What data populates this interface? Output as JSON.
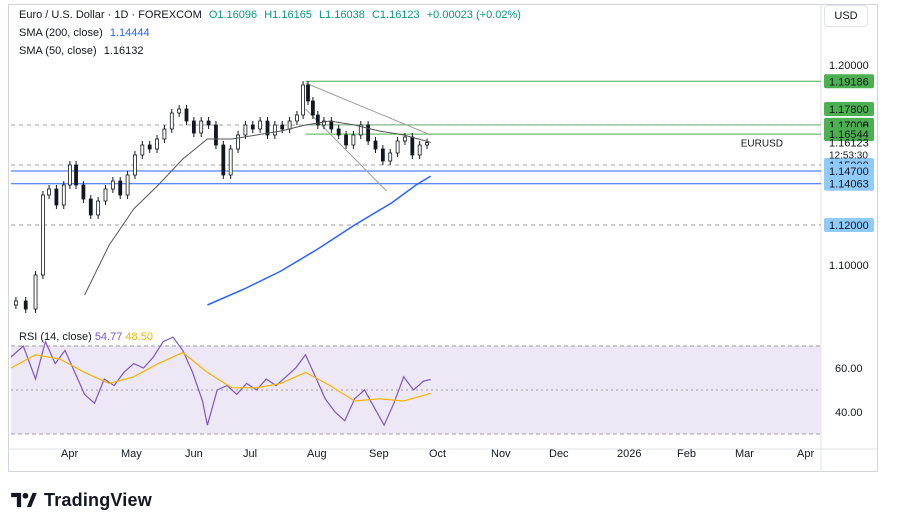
{
  "header": {
    "instrument": "Euro / U.S. Dollar · 1D · FOREXCOM",
    "open": "O1.16096",
    "high": "H1.16165",
    "low": "L1.16038",
    "close": "C1.16123",
    "change": "+0.00023 (+0.02%)"
  },
  "indicators": {
    "sma200_label": "SMA (200, close)",
    "sma200_value": "1.14444",
    "sma50_label": "SMA (50, close)",
    "sma50_value": "1.16132",
    "rsi_label": "RSI (14, close)",
    "rsi_value": "54.77",
    "rsi_ma_value": "48.50"
  },
  "currency_button": "USD",
  "symbol_tag": "EURUSD",
  "last_price": "1.16123",
  "countdown": "12:53:30",
  "brand": "TradingView",
  "colors": {
    "up": "#089981",
    "price_candle": "#131722",
    "sma200": "#2962ff",
    "sma50": "#555555",
    "resistance": "#4caf50",
    "support": "#2962ff",
    "rsi": "#7e57c2",
    "rsi_ma": "#f7b500",
    "rsi_band": "#ede7f6",
    "channel": "#9e9e9e"
  },
  "chart_data": {
    "type": "candlestick",
    "symbol": "EURUSD",
    "timeframe": "1D",
    "x_ticks": [
      "Apr",
      "May",
      "Jun",
      "Jul",
      "Aug",
      "Sep",
      "Oct",
      "Nov",
      "Dec",
      "2026",
      "Feb",
      "Mar",
      "Apr"
    ],
    "price_axis": {
      "ticks": [
        "1.20000",
        "1.10000"
      ],
      "ylim": [
        1.07,
        1.21
      ]
    },
    "price_labels": [
      {
        "text": "1.19186",
        "value": 1.19186,
        "style": "green"
      },
      {
        "text": "1.17800",
        "value": 1.178,
        "style": "green"
      },
      {
        "text": "1.17008",
        "value": 1.17008,
        "style": "green"
      },
      {
        "text": "1.17000",
        "value": 1.17,
        "style": "plain"
      },
      {
        "text": "1.16544",
        "value": 1.16544,
        "style": "green"
      },
      {
        "text": "1.16123",
        "value": 1.16123,
        "style": "plain"
      },
      {
        "text": "1.15000",
        "value": 1.15,
        "style": "blue"
      },
      {
        "text": "1.14700",
        "value": 1.147,
        "style": "blue"
      },
      {
        "text": "1.14063",
        "value": 1.14063,
        "style": "blue"
      },
      {
        "text": "1.12000",
        "value": 1.12,
        "style": "blue"
      }
    ],
    "horizontal_levels": [
      {
        "value": 1.19186,
        "kind": "resistance",
        "start": "Sep"
      },
      {
        "value": 1.17008,
        "kind": "resistance",
        "start": "Sep"
      },
      {
        "value": 1.16544,
        "kind": "resistance",
        "start": "Sep"
      },
      {
        "value": 1.15,
        "kind": "dashed"
      },
      {
        "value": 1.147,
        "kind": "support"
      },
      {
        "value": 1.14063,
        "kind": "support"
      },
      {
        "value": 1.12,
        "kind": "dashed"
      },
      {
        "value": 1.17,
        "kind": "dashed"
      }
    ],
    "price_path": [
      {
        "t": 0,
        "v": 1.08
      },
      {
        "t": 4,
        "v": 1.082
      },
      {
        "t": 8,
        "v": 1.078
      },
      {
        "t": 12,
        "v": 1.095
      },
      {
        "t": 14,
        "v": 1.135
      },
      {
        "t": 17,
        "v": 1.138
      },
      {
        "t": 20,
        "v": 1.13
      },
      {
        "t": 23,
        "v": 1.14
      },
      {
        "t": 25,
        "v": 1.15
      },
      {
        "t": 28,
        "v": 1.14
      },
      {
        "t": 31,
        "v": 1.133
      },
      {
        "t": 34,
        "v": 1.125
      },
      {
        "t": 37,
        "v": 1.132
      },
      {
        "t": 40,
        "v": 1.138
      },
      {
        "t": 43,
        "v": 1.142
      },
      {
        "t": 46,
        "v": 1.135
      },
      {
        "t": 49,
        "v": 1.145
      },
      {
        "t": 52,
        "v": 1.155
      },
      {
        "t": 55,
        "v": 1.16
      },
      {
        "t": 58,
        "v": 1.158
      },
      {
        "t": 61,
        "v": 1.163
      },
      {
        "t": 64,
        "v": 1.168
      },
      {
        "t": 67,
        "v": 1.176
      },
      {
        "t": 70,
        "v": 1.178
      },
      {
        "t": 73,
        "v": 1.172
      },
      {
        "t": 76,
        "v": 1.166
      },
      {
        "t": 79,
        "v": 1.172
      },
      {
        "t": 82,
        "v": 1.17
      },
      {
        "t": 85,
        "v": 1.16
      },
      {
        "t": 88,
        "v": 1.145
      },
      {
        "t": 91,
        "v": 1.158
      },
      {
        "t": 94,
        "v": 1.165
      },
      {
        "t": 97,
        "v": 1.17
      },
      {
        "t": 100,
        "v": 1.168
      },
      {
        "t": 103,
        "v": 1.172
      },
      {
        "t": 106,
        "v": 1.165
      },
      {
        "t": 109,
        "v": 1.17
      },
      {
        "t": 112,
        "v": 1.168
      },
      {
        "t": 115,
        "v": 1.172
      },
      {
        "t": 118,
        "v": 1.175
      },
      {
        "t": 120,
        "v": 1.19
      },
      {
        "t": 122,
        "v": 1.182
      },
      {
        "t": 124,
        "v": 1.175
      },
      {
        "t": 126,
        "v": 1.17
      },
      {
        "t": 129,
        "v": 1.172
      },
      {
        "t": 132,
        "v": 1.168
      },
      {
        "t": 135,
        "v": 1.165
      },
      {
        "t": 138,
        "v": 1.16
      },
      {
        "t": 141,
        "v": 1.165
      },
      {
        "t": 144,
        "v": 1.17
      },
      {
        "t": 147,
        "v": 1.162
      },
      {
        "t": 150,
        "v": 1.158
      },
      {
        "t": 153,
        "v": 1.152
      },
      {
        "t": 156,
        "v": 1.156
      },
      {
        "t": 159,
        "v": 1.162
      },
      {
        "t": 162,
        "v": 1.164
      },
      {
        "t": 165,
        "v": 1.155
      },
      {
        "t": 168,
        "v": 1.16
      },
      {
        "t": 171,
        "v": 1.16123
      }
    ],
    "sma50": [
      {
        "t": 30,
        "v": 1.085
      },
      {
        "t": 40,
        "v": 1.11
      },
      {
        "t": 50,
        "v": 1.128
      },
      {
        "t": 60,
        "v": 1.14
      },
      {
        "t": 70,
        "v": 1.153
      },
      {
        "t": 80,
        "v": 1.163
      },
      {
        "t": 90,
        "v": 1.163
      },
      {
        "t": 100,
        "v": 1.165
      },
      {
        "t": 110,
        "v": 1.167
      },
      {
        "t": 120,
        "v": 1.17
      },
      {
        "t": 130,
        "v": 1.172
      },
      {
        "t": 140,
        "v": 1.17
      },
      {
        "t": 150,
        "v": 1.167
      },
      {
        "t": 160,
        "v": 1.165
      },
      {
        "t": 171,
        "v": 1.16132
      }
    ],
    "sma200": [
      {
        "t": 80,
        "v": 1.08
      },
      {
        "t": 95,
        "v": 1.088
      },
      {
        "t": 110,
        "v": 1.097
      },
      {
        "t": 125,
        "v": 1.108
      },
      {
        "t": 140,
        "v": 1.12
      },
      {
        "t": 155,
        "v": 1.131
      },
      {
        "t": 165,
        "v": 1.14
      },
      {
        "t": 171,
        "v": 1.14444
      }
    ],
    "channel": {
      "upper": [
        {
          "t": 120,
          "v": 1.191
        },
        {
          "t": 171,
          "v": 1.165
        }
      ],
      "lower": [
        {
          "t": 120,
          "v": 1.178
        },
        {
          "t": 153,
          "v": 1.137
        }
      ]
    },
    "rsi": {
      "ylim": [
        25,
        75
      ],
      "ticks": [
        60.0,
        40.0
      ],
      "band": [
        30,
        70
      ],
      "rsi_series": [
        {
          "t": 0,
          "v": 65
        },
        {
          "t": 5,
          "v": 70
        },
        {
          "t": 10,
          "v": 55
        },
        {
          "t": 14,
          "v": 72
        },
        {
          "t": 18,
          "v": 62
        },
        {
          "t": 22,
          "v": 68
        },
        {
          "t": 26,
          "v": 58
        },
        {
          "t": 30,
          "v": 48
        },
        {
          "t": 34,
          "v": 44
        },
        {
          "t": 38,
          "v": 55
        },
        {
          "t": 42,
          "v": 52
        },
        {
          "t": 46,
          "v": 58
        },
        {
          "t": 50,
          "v": 62
        },
        {
          "t": 54,
          "v": 60
        },
        {
          "t": 58,
          "v": 65
        },
        {
          "t": 62,
          "v": 72
        },
        {
          "t": 66,
          "v": 74
        },
        {
          "t": 70,
          "v": 68
        },
        {
          "t": 74,
          "v": 58
        },
        {
          "t": 78,
          "v": 45
        },
        {
          "t": 80,
          "v": 34
        },
        {
          "t": 84,
          "v": 50
        },
        {
          "t": 88,
          "v": 52
        },
        {
          "t": 92,
          "v": 48
        },
        {
          "t": 96,
          "v": 53
        },
        {
          "t": 100,
          "v": 50
        },
        {
          "t": 104,
          "v": 55
        },
        {
          "t": 108,
          "v": 52
        },
        {
          "t": 112,
          "v": 56
        },
        {
          "t": 116,
          "v": 60
        },
        {
          "t": 120,
          "v": 66
        },
        {
          "t": 124,
          "v": 56
        },
        {
          "t": 128,
          "v": 46
        },
        {
          "t": 132,
          "v": 40
        },
        {
          "t": 136,
          "v": 36
        },
        {
          "t": 140,
          "v": 46
        },
        {
          "t": 144,
          "v": 50
        },
        {
          "t": 148,
          "v": 42
        },
        {
          "t": 152,
          "v": 34
        },
        {
          "t": 156,
          "v": 44
        },
        {
          "t": 160,
          "v": 56
        },
        {
          "t": 164,
          "v": 50
        },
        {
          "t": 168,
          "v": 54
        },
        {
          "t": 171,
          "v": 54.77
        }
      ],
      "rsi_ma_series": [
        {
          "t": 0,
          "v": 60
        },
        {
          "t": 10,
          "v": 66
        },
        {
          "t": 20,
          "v": 64
        },
        {
          "t": 30,
          "v": 58
        },
        {
          "t": 40,
          "v": 53
        },
        {
          "t": 50,
          "v": 56
        },
        {
          "t": 60,
          "v": 62
        },
        {
          "t": 70,
          "v": 67
        },
        {
          "t": 80,
          "v": 58
        },
        {
          "t": 90,
          "v": 51
        },
        {
          "t": 100,
          "v": 51
        },
        {
          "t": 110,
          "v": 53
        },
        {
          "t": 120,
          "v": 58
        },
        {
          "t": 130,
          "v": 52
        },
        {
          "t": 140,
          "v": 45
        },
        {
          "t": 150,
          "v": 46
        },
        {
          "t": 160,
          "v": 45
        },
        {
          "t": 171,
          "v": 48.5
        }
      ]
    }
  }
}
